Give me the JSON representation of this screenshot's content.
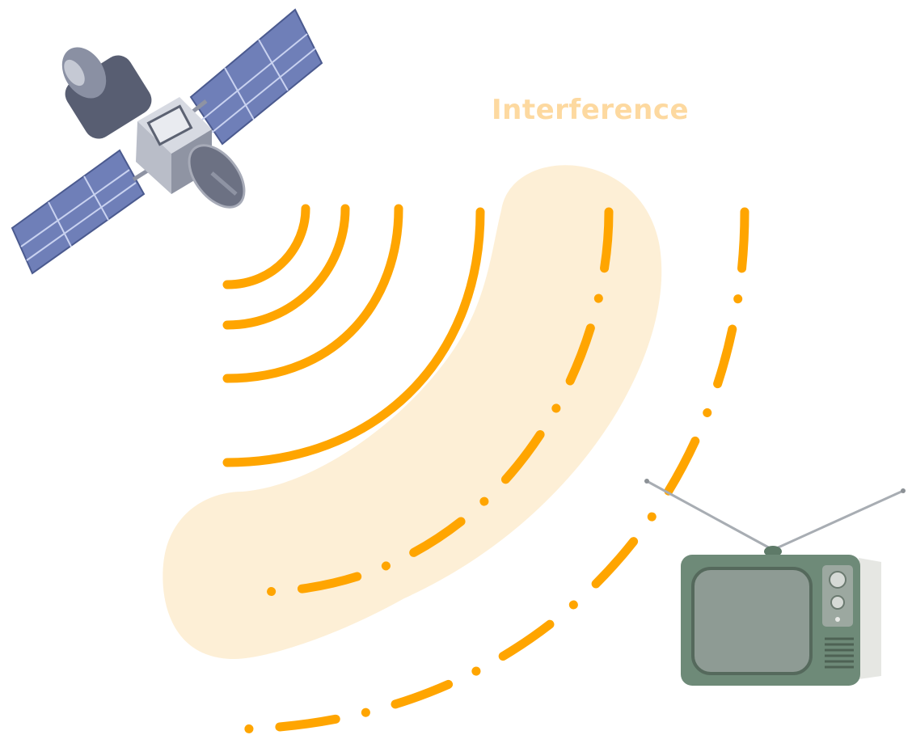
{
  "annotation": {
    "label": "Interference"
  },
  "objects": {
    "transmitter": "satellite-icon",
    "receiver": "television-icon"
  },
  "colors": {
    "wave": "#FFA500",
    "interference_zone": "#FDEFD6",
    "label": "#FDD9A0",
    "solar_panel": "#6F7FB8",
    "satellite_body": "#B9BDC8",
    "tv_body": "#6E8A78",
    "tv_screen": "#8E9B94"
  }
}
